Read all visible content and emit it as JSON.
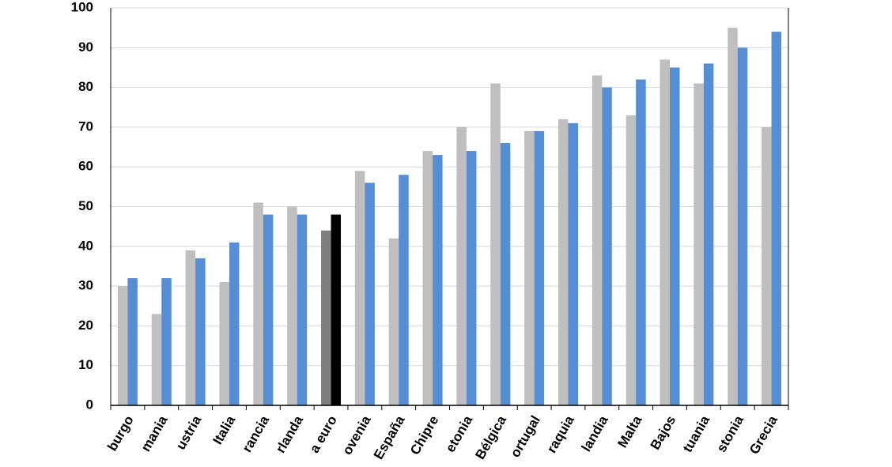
{
  "chart_data": {
    "type": "bar",
    "categories": [
      "burgo",
      "mania",
      "ustria",
      "Italia",
      "rancia",
      "rlanda",
      "a euro",
      "ovenia",
      "España",
      "Chipre",
      "etonia",
      "Bélgica",
      "ortugal",
      "raquia",
      "landia",
      "Malta",
      "Bajos",
      "tuania",
      "stonia",
      "Grecia"
    ],
    "series": [
      {
        "color": "#bfbfbf",
        "colors": [
          "#bfbfbf",
          "#bfbfbf",
          "#bfbfbf",
          "#bfbfbf",
          "#bfbfbf",
          "#bfbfbf",
          "#7f7f7f",
          "#bfbfbf",
          "#bfbfbf",
          "#bfbfbf",
          "#bfbfbf",
          "#bfbfbf",
          "#bfbfbf",
          "#bfbfbf",
          "#bfbfbf",
          "#bfbfbf",
          "#bfbfbf",
          "#bfbfbf",
          "#bfbfbf",
          "#bfbfbf"
        ],
        "values": [
          30,
          23,
          39,
          31,
          51,
          50,
          44,
          59,
          42,
          64,
          70,
          81,
          69,
          72,
          83,
          73,
          87,
          81,
          95,
          70
        ]
      },
      {
        "color": "#558ed5",
        "colors": [
          "#558ed5",
          "#558ed5",
          "#558ed5",
          "#558ed5",
          "#558ed5",
          "#558ed5",
          "#000000",
          "#558ed5",
          "#558ed5",
          "#558ed5",
          "#558ed5",
          "#558ed5",
          "#558ed5",
          "#558ed5",
          "#558ed5",
          "#558ed5",
          "#558ed5",
          "#558ed5",
          "#558ed5",
          "#558ed5"
        ],
        "values": [
          32,
          32,
          37,
          41,
          48,
          48,
          48,
          56,
          58,
          63,
          64,
          66,
          69,
          71,
          80,
          82,
          85,
          86,
          90,
          94
        ]
      }
    ],
    "ylim": [
      0,
      100
    ],
    "yticks": [
      0,
      10,
      20,
      30,
      40,
      50,
      60,
      70,
      80,
      90,
      100
    ],
    "grid": true
  }
}
